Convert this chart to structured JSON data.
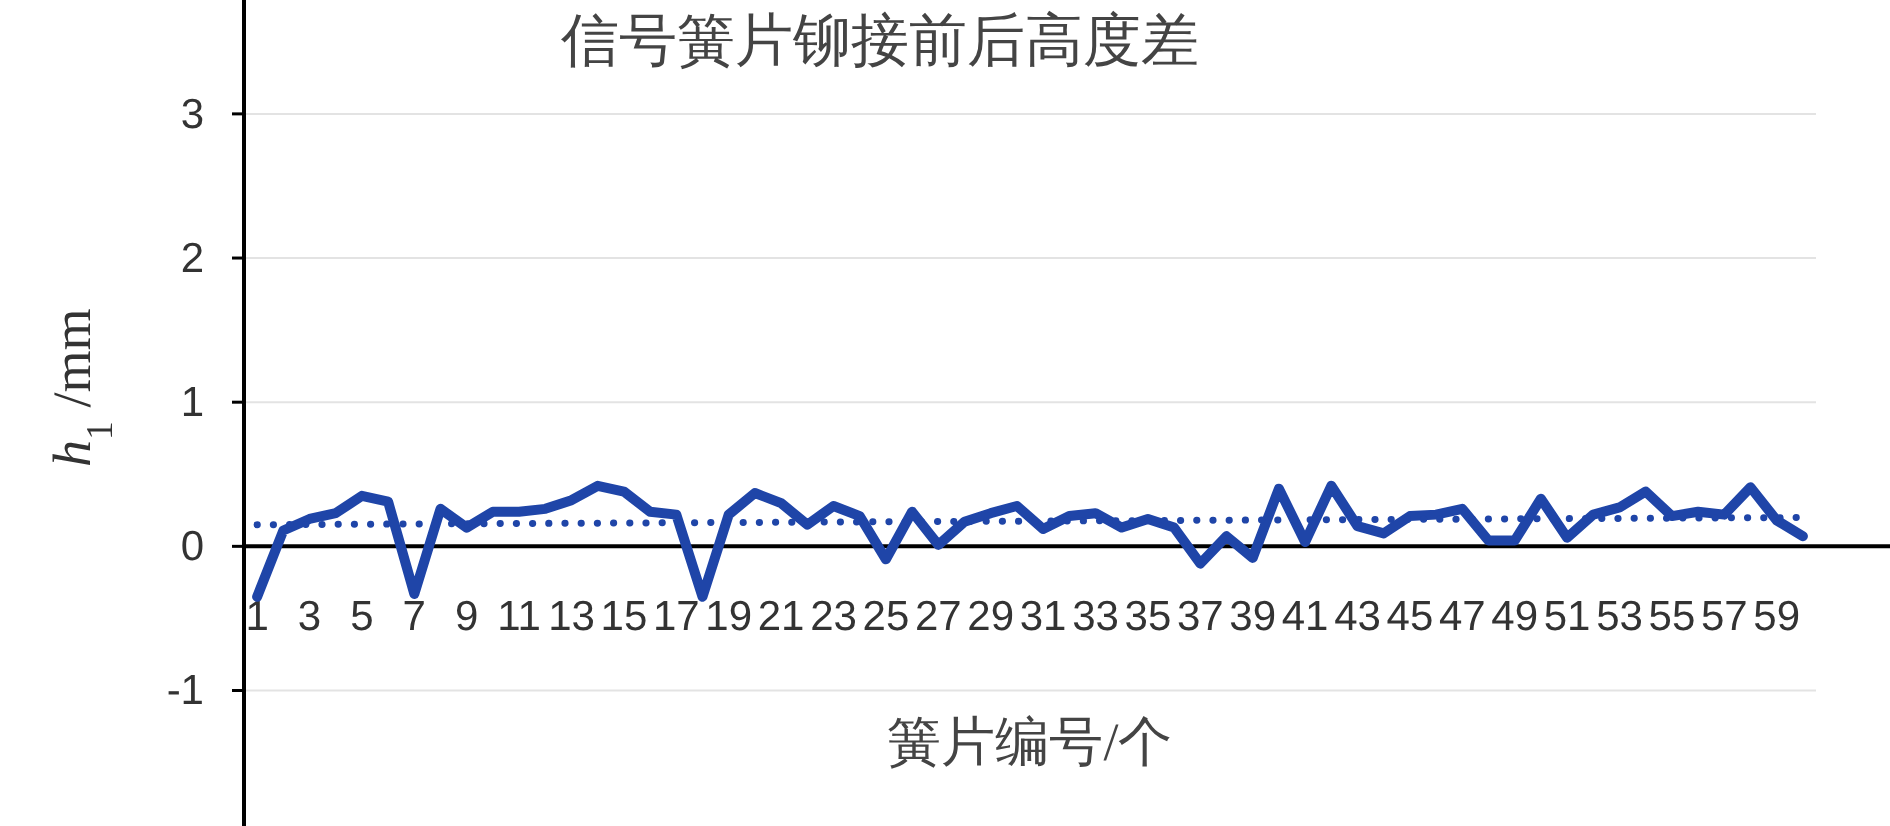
{
  "chart_data": {
    "type": "line",
    "title": "信号簧片铆接前后高度差",
    "xlabel": "簧片编号/个",
    "ylabel": "*h*$_{1}$ /mm",
    "x": [
      1,
      2,
      3,
      4,
      5,
      6,
      7,
      8,
      9,
      10,
      11,
      12,
      13,
      14,
      15,
      16,
      17,
      18,
      19,
      20,
      21,
      22,
      23,
      24,
      25,
      26,
      27,
      28,
      29,
      30,
      31,
      32,
      33,
      34,
      35,
      36,
      37,
      38,
      39,
      40,
      41,
      42,
      43,
      44,
      45,
      46,
      47,
      48,
      49,
      50,
      51,
      52,
      53,
      54,
      55,
      56,
      57,
      58,
      59,
      60
    ],
    "xlim": [
      0.5,
      60.5
    ],
    "xticks": [
      1,
      3,
      5,
      7,
      9,
      11,
      13,
      15,
      17,
      19,
      21,
      23,
      25,
      27,
      29,
      31,
      33,
      35,
      37,
      39,
      41,
      43,
      45,
      47,
      49,
      51,
      53,
      55,
      57,
      59
    ],
    "ylim": [
      -1.94,
      3.79
    ],
    "yticks": [
      -1,
      0,
      1,
      2,
      3
    ],
    "grid": "y",
    "line_style": "solid",
    "series": [
      {
        "color": "#1f45a8",
        "values": [
          -0.35,
          0.11,
          0.19,
          0.23,
          0.35,
          0.31,
          -0.33,
          0.26,
          0.13,
          0.24,
          0.24,
          0.26,
          0.32,
          0.42,
          0.38,
          0.24,
          0.22,
          -0.35,
          0.22,
          0.37,
          0.3,
          0.15,
          0.28,
          0.21,
          -0.09,
          0.24,
          0.01,
          0.17,
          0.23,
          0.28,
          0.12,
          0.21,
          0.23,
          0.13,
          0.19,
          0.13,
          -0.12,
          0.07,
          -0.08,
          0.4,
          0.03,
          0.42,
          0.14,
          0.09,
          0.21,
          0.22,
          0.26,
          0.04,
          0.04,
          0.33,
          0.06,
          0.22,
          0.27,
          0.38,
          0.21,
          0.24,
          0.22,
          0.41,
          0.18,
          0.07
        ]
      },
      {
        "color": "#1f45a8",
        "line_style": "dotted",
        "x": [
          1,
          60
        ],
        "values": [
          0.15,
          0.2
        ]
      }
    ]
  }
}
